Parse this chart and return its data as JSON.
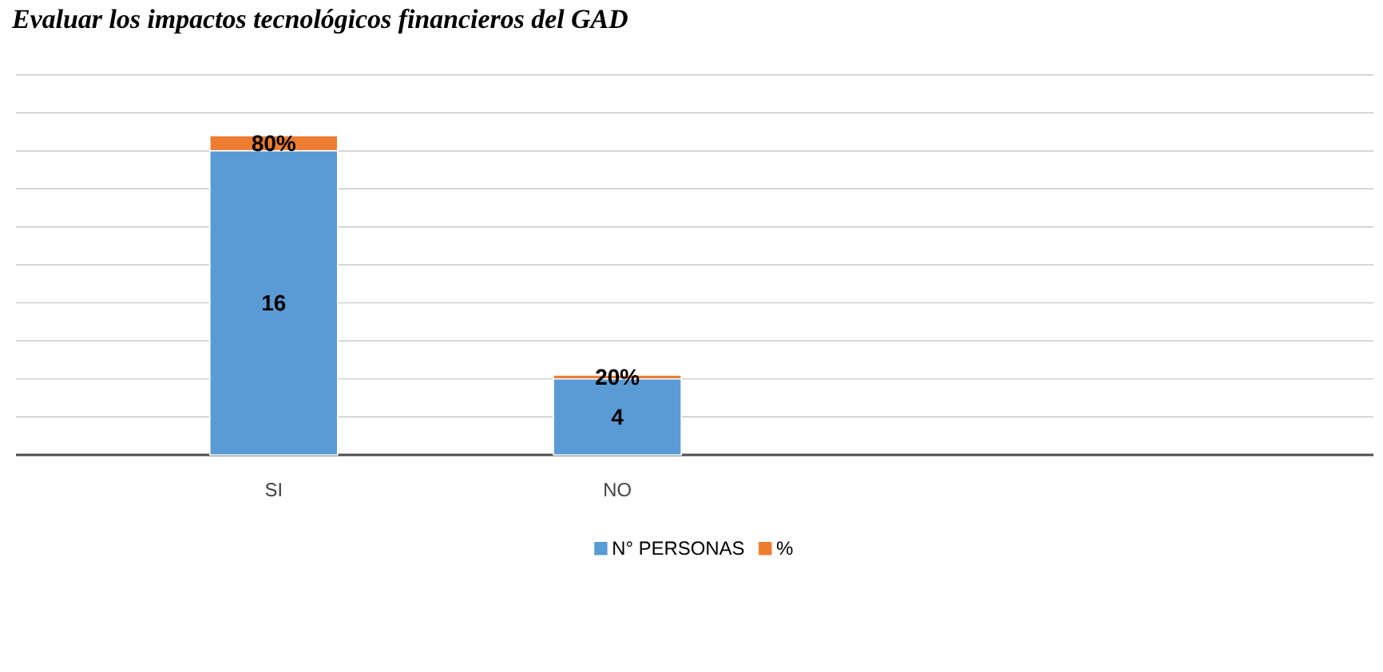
{
  "chart_data": {
    "type": "bar",
    "stacked": true,
    "title": "Evaluar los impactos tecnológicos financieros del GAD",
    "categories": [
      "SI",
      "NO",
      null,
      null
    ],
    "series": [
      {
        "name": "N° PERSONAS",
        "color": "#5b9bd5",
        "values": [
          16,
          4,
          null,
          null
        ],
        "value_labels": [
          "16",
          "4",
          null,
          null
        ]
      },
      {
        "name": "%",
        "color": "#ed7d31",
        "values": [
          0.8,
          0.2,
          null,
          null
        ],
        "value_labels": [
          "80%",
          "20%",
          null,
          null
        ]
      }
    ],
    "tick_labels": "x",
    "grid": "y",
    "legend": "bottom"
  }
}
